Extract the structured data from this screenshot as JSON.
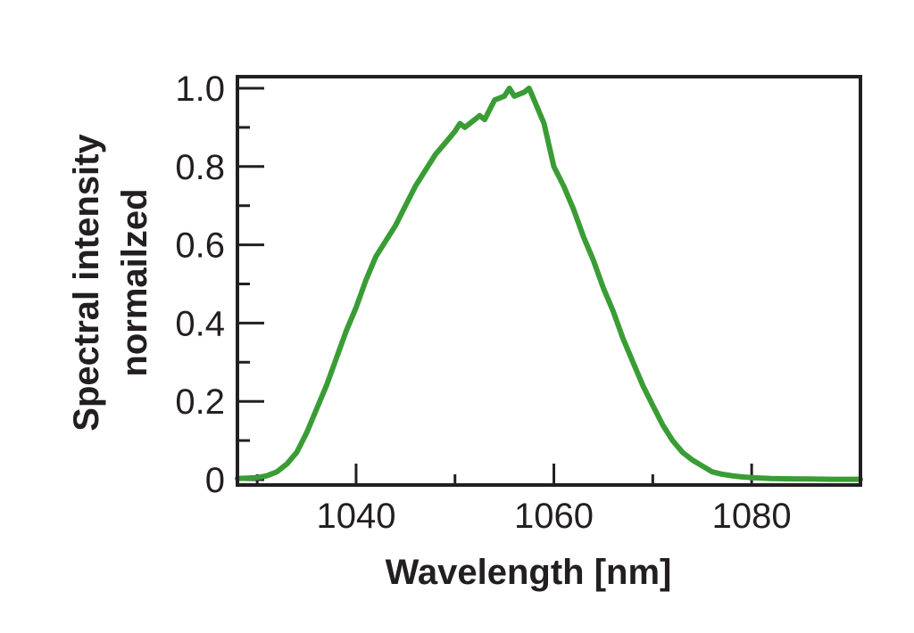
{
  "chart_data": {
    "type": "line",
    "xlabel": "Wavelength [nm]",
    "ylabel_lines": [
      "Spectral intensity",
      "normailzed"
    ],
    "xlim": [
      1028,
      1091
    ],
    "ylim": [
      0,
      1.02
    ],
    "x_ticks": [
      1040,
      1060,
      1080
    ],
    "x_tick_labels": [
      "1040",
      "1060",
      "1080"
    ],
    "x_minor_ticks": [
      1030,
      1050,
      1070
    ],
    "y_ticks": [
      0,
      0.2,
      0.4,
      0.6,
      0.8,
      1.0
    ],
    "y_tick_labels": [
      "0",
      "0.2",
      "0.4",
      "0.6",
      "0.8",
      "1.0"
    ],
    "y_minor_ticks": [
      0.1,
      0.3,
      0.5,
      0.7,
      0.9
    ],
    "grid": false,
    "line_color": "#3a9c35",
    "series": [
      {
        "x": [
          1028,
          1030,
          1031,
          1032,
          1033,
          1034,
          1035,
          1036,
          1037,
          1038,
          1039,
          1040,
          1041,
          1042,
          1043,
          1044,
          1045,
          1046,
          1047,
          1048,
          1049,
          1050,
          1050.5,
          1051,
          1052,
          1052.5,
          1053,
          1054,
          1055,
          1055.5,
          1056,
          1057,
          1057.5,
          1058,
          1059,
          1060,
          1061,
          1062,
          1063,
          1064,
          1065,
          1066,
          1067,
          1068,
          1069,
          1070,
          1071,
          1072,
          1073,
          1074,
          1075,
          1076,
          1077,
          1078,
          1079,
          1080,
          1082,
          1084,
          1086,
          1088,
          1091
        ],
        "y": [
          0.003,
          0.005,
          0.01,
          0.02,
          0.04,
          0.07,
          0.12,
          0.18,
          0.24,
          0.31,
          0.38,
          0.44,
          0.51,
          0.57,
          0.61,
          0.65,
          0.7,
          0.75,
          0.79,
          0.83,
          0.86,
          0.89,
          0.91,
          0.9,
          0.92,
          0.93,
          0.92,
          0.97,
          0.98,
          1.0,
          0.98,
          0.99,
          1.0,
          0.97,
          0.91,
          0.8,
          0.75,
          0.69,
          0.62,
          0.56,
          0.49,
          0.43,
          0.36,
          0.3,
          0.24,
          0.19,
          0.14,
          0.1,
          0.07,
          0.05,
          0.035,
          0.02,
          0.014,
          0.01,
          0.007,
          0.005,
          0.003,
          0.002,
          0.0015,
          0.001,
          0.001
        ]
      }
    ]
  }
}
